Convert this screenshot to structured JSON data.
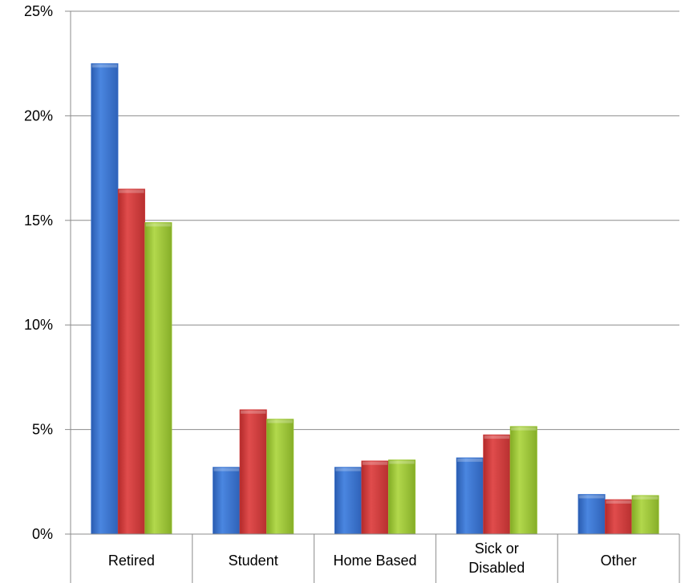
{
  "chart_data": {
    "type": "bar",
    "title": "",
    "xlabel": "",
    "ylabel": "",
    "categories": [
      "Retired",
      "Student",
      "Home Based",
      "Sick or Disabled",
      "Other"
    ],
    "category_lines": [
      [
        "Retired"
      ],
      [
        "Student"
      ],
      [
        "Home Based"
      ],
      [
        "Sick or",
        "Disabled"
      ],
      [
        "Other"
      ]
    ],
    "series": [
      {
        "values": [
          22.5,
          3.2,
          3.2,
          3.65,
          1.9
        ],
        "color": "#3a74d0"
      },
      {
        "values": [
          16.5,
          5.95,
          3.5,
          4.75,
          1.65
        ],
        "color": "#d23a3a"
      },
      {
        "values": [
          14.9,
          5.5,
          3.55,
          5.15,
          1.85
        ],
        "color": "#9fc93a"
      }
    ],
    "ylim": [
      0,
      25
    ],
    "yticks": [
      0,
      5,
      10,
      15,
      20,
      25
    ],
    "ytick_labels": [
      "0%",
      "5%",
      "10%",
      "15%",
      "20%",
      "25%"
    ],
    "grid": true,
    "legend": "none"
  }
}
